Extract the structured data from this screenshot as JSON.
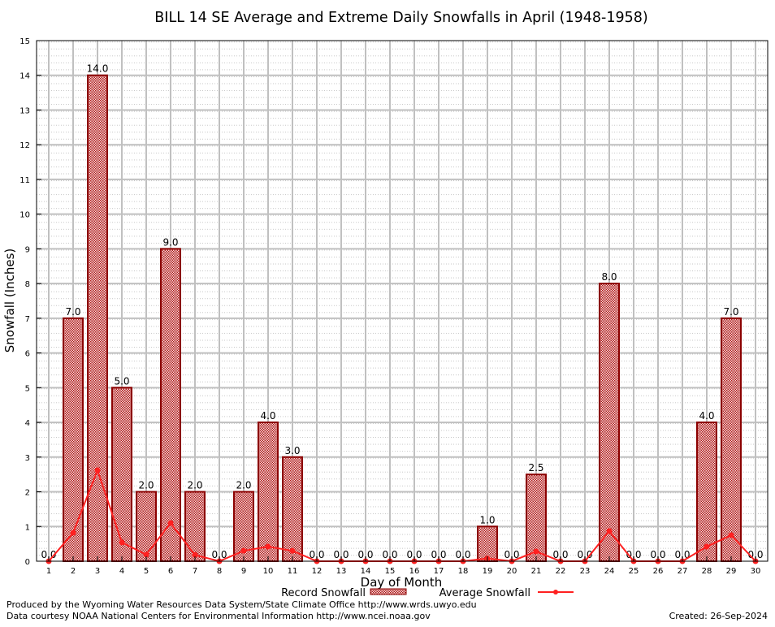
{
  "chart_data": {
    "type": "bar",
    "title": "BILL 14 SE Average and Extreme Daily Snowfalls in April (1948-1958)",
    "xlabel": "Day of Month",
    "ylabel": "Snowfall (Inches)",
    "ylim": [
      0,
      15
    ],
    "yticks": [
      "0",
      "1",
      "2",
      "3",
      "4",
      "5",
      "6",
      "7",
      "8",
      "9",
      "10",
      "11",
      "12",
      "13",
      "14",
      "15"
    ],
    "categories": [
      "1",
      "2",
      "3",
      "4",
      "5",
      "6",
      "7",
      "8",
      "9",
      "10",
      "11",
      "12",
      "13",
      "14",
      "15",
      "16",
      "17",
      "18",
      "19",
      "20",
      "21",
      "22",
      "23",
      "24",
      "25",
      "26",
      "27",
      "28",
      "29",
      "30"
    ],
    "grid": true,
    "legend_placement": "bottom-center",
    "series": [
      {
        "name": "Record Snowfall",
        "kind": "bar",
        "values": [
          0,
          7,
          14,
          5,
          2,
          9,
          2,
          0,
          2,
          4,
          3,
          0,
          0,
          0,
          0,
          0,
          0,
          0,
          1,
          0,
          2.5,
          0,
          0,
          8,
          0,
          0,
          0,
          4,
          7,
          0
        ],
        "labels": [
          "0.0",
          "7.0",
          "14.0",
          "5.0",
          "2.0",
          "9.0",
          "2.0",
          "0.0",
          "2.0",
          "4.0",
          "3.0",
          "0.0",
          "0.0",
          "0.0",
          "0.0",
          "0.0",
          "0.0",
          "0.0",
          "1.0",
          "0.0",
          "2.5",
          "0.0",
          "0.0",
          "8.0",
          "0.0",
          "0.0",
          "0.0",
          "4.0",
          "7.0",
          "0.0"
        ],
        "color": "#b22222"
      },
      {
        "name": "Average Snowfall",
        "kind": "line",
        "values": [
          0,
          0.82,
          2.62,
          0.54,
          0.19,
          1.1,
          0.18,
          0,
          0.3,
          0.42,
          0.3,
          0,
          0,
          0,
          0,
          0,
          0,
          0,
          0.08,
          0,
          0.28,
          0,
          0,
          0.87,
          0,
          0,
          0,
          0.42,
          0.75,
          0
        ],
        "color": "#ff2020"
      }
    ]
  },
  "footer": {
    "produced_by": "Produced by the Wyoming Water Resources Data System/State Climate Office http://www.wrds.uwyo.edu",
    "courtesy": "Data courtesy NOAA National Centers for Environmental Information http://www.ncei.noaa.gov",
    "created": "Created: 26-Sep-2024"
  }
}
